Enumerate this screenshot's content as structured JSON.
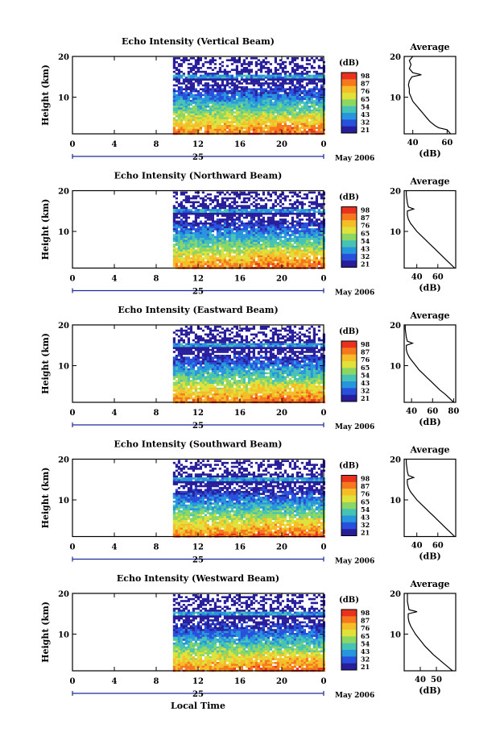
{
  "figure": {
    "x_axis_title": "Local Time",
    "date_label": "May 2006",
    "day_label": "25",
    "colorbar_unit": "(dB)",
    "colorbar_ticks": [
      "98",
      "87",
      "76",
      "65",
      "54",
      "43",
      "32",
      "21"
    ],
    "colorbar_colors": [
      "#e8321e",
      "#f5781e",
      "#f5be28",
      "#e1e13c",
      "#8cd764",
      "#46c3b4",
      "#2896dc",
      "#2850dc",
      "#281e9b"
    ],
    "height_axis_label": "Height (km)",
    "profile_title": "Average",
    "profile_xlabel": "(dB)"
  },
  "chart_data": [
    {
      "type": "heatmap",
      "title": "Echo Intensity (Vertical Beam)",
      "xlabel": "",
      "ylabel": "Height (km)",
      "xlim": [
        0,
        24
      ],
      "ylim": [
        1,
        20
      ],
      "x_ticks": [
        "0",
        "4",
        "8",
        "12",
        "16",
        "20",
        "0"
      ],
      "y_ticks": [
        "20",
        "10"
      ],
      "data_start_hour": 9.6,
      "data_end_hour": 24,
      "value_range_db": [
        21,
        98
      ],
      "profile": {
        "type": "line",
        "title": "Average",
        "xlabel": "(dB)",
        "x_ticks": [
          "40",
          "60"
        ],
        "xlim": [
          35,
          65
        ],
        "heights_km": [
          1,
          2,
          2.5,
          3,
          4,
          5,
          6,
          7,
          8,
          9,
          10,
          11,
          12,
          13,
          14,
          15,
          15.5,
          16,
          17,
          18,
          19,
          20
        ],
        "values_db": [
          62,
          60,
          55,
          53,
          50,
          48,
          46,
          44,
          42,
          40,
          39,
          38,
          38,
          37.5,
          38,
          39.5,
          45,
          40,
          38,
          39,
          38,
          40
        ]
      }
    },
    {
      "type": "heatmap",
      "title": "Echo Intensity (Northward Beam)",
      "xlabel": "",
      "ylabel": "Height (km)",
      "xlim": [
        0,
        24
      ],
      "ylim": [
        1,
        20
      ],
      "x_ticks": [
        "0",
        "4",
        "8",
        "12",
        "16",
        "20",
        "0"
      ],
      "y_ticks": [
        "20",
        "10"
      ],
      "data_start_hour": 9.6,
      "data_end_hour": 24,
      "value_range_db": [
        21,
        98
      ],
      "profile": {
        "type": "line",
        "title": "Average",
        "xlabel": "(dB)",
        "x_ticks": [
          "40",
          "60"
        ],
        "xlim": [
          28,
          77
        ],
        "heights_km": [
          1,
          2,
          3,
          4,
          5,
          6,
          7,
          8,
          9,
          10,
          11,
          12,
          13,
          14,
          15,
          15.5,
          16,
          17,
          18,
          19,
          20
        ],
        "values_db": [
          76,
          72,
          68,
          64,
          60,
          56,
          52,
          48,
          44,
          40,
          37,
          34,
          32,
          31,
          31,
          37,
          32,
          31,
          30.5,
          30,
          30
        ]
      }
    },
    {
      "type": "heatmap",
      "title": "Echo Intensity (Eastward Beam)",
      "xlabel": "",
      "ylabel": "Height (km)",
      "xlim": [
        0,
        24
      ],
      "ylim": [
        1,
        20
      ],
      "x_ticks": [
        "0",
        "4",
        "8",
        "12",
        "16",
        "20",
        "0"
      ],
      "y_ticks": [
        "20",
        "10"
      ],
      "data_start_hour": 9.6,
      "data_end_hour": 24,
      "value_range_db": [
        21,
        98
      ],
      "profile": {
        "type": "line",
        "title": "Average",
        "xlabel": "(dB)",
        "x_ticks": [
          "40",
          "60",
          "80"
        ],
        "xlim": [
          33,
          82
        ],
        "heights_km": [
          1,
          2,
          3,
          4,
          5,
          6,
          7,
          8,
          9,
          10,
          11,
          12,
          13,
          14,
          15,
          15.5,
          16,
          17,
          18,
          19,
          20
        ],
        "values_db": [
          80,
          76,
          72,
          67,
          63,
          59,
          55,
          51,
          47,
          44,
          41,
          38,
          36,
          35,
          35,
          41,
          36,
          35,
          34.5,
          34,
          34
        ]
      }
    },
    {
      "type": "heatmap",
      "title": "Echo Intensity (Southward Beam)",
      "xlabel": "",
      "ylabel": "Height (km)",
      "xlim": [
        0,
        24
      ],
      "ylim": [
        1,
        20
      ],
      "x_ticks": [
        "0",
        "4",
        "8",
        "12",
        "16",
        "20",
        "0"
      ],
      "y_ticks": [
        "20",
        "10"
      ],
      "data_start_hour": 9.6,
      "data_end_hour": 24,
      "value_range_db": [
        21,
        98
      ],
      "profile": {
        "type": "line",
        "title": "Average",
        "xlabel": "(dB)",
        "x_ticks": [
          "40",
          "60"
        ],
        "xlim": [
          28,
          77
        ],
        "heights_km": [
          1,
          2,
          3,
          4,
          5,
          6,
          7,
          8,
          9,
          10,
          11,
          12,
          13,
          14,
          15,
          15.5,
          16,
          17,
          18,
          19,
          20
        ],
        "values_db": [
          76,
          72,
          68,
          64,
          60,
          56,
          52,
          48,
          44,
          40,
          37,
          34,
          32,
          31,
          31,
          37,
          32,
          31,
          30.5,
          30,
          30
        ]
      }
    },
    {
      "type": "heatmap",
      "title": "Echo Intensity (Westward Beam)",
      "xlabel": "Local Time",
      "ylabel": "Height (km)",
      "xlim": [
        0,
        24
      ],
      "ylim": [
        1,
        20
      ],
      "x_ticks": [
        "0",
        "4",
        "8",
        "12",
        "16",
        "20",
        "0"
      ],
      "y_ticks": [
        "20",
        "10"
      ],
      "data_start_hour": 9.6,
      "data_end_hour": 24,
      "value_range_db": [
        21,
        98
      ],
      "profile": {
        "type": "line",
        "title": "Average",
        "xlabel": "(dB)",
        "x_ticks": [
          "40",
          "50"
        ],
        "xlim": [
          30,
          62
        ],
        "heights_km": [
          1,
          2,
          3,
          4,
          5,
          6,
          7,
          8,
          9,
          10,
          11,
          12,
          13,
          14,
          15,
          15.5,
          16,
          17,
          18,
          19,
          20
        ],
        "values_db": [
          60,
          57,
          54,
          51,
          48,
          45.5,
          43,
          41,
          39,
          37,
          35.5,
          34,
          33,
          32.5,
          32.5,
          38,
          33,
          32.5,
          32,
          32,
          32
        ]
      }
    }
  ]
}
